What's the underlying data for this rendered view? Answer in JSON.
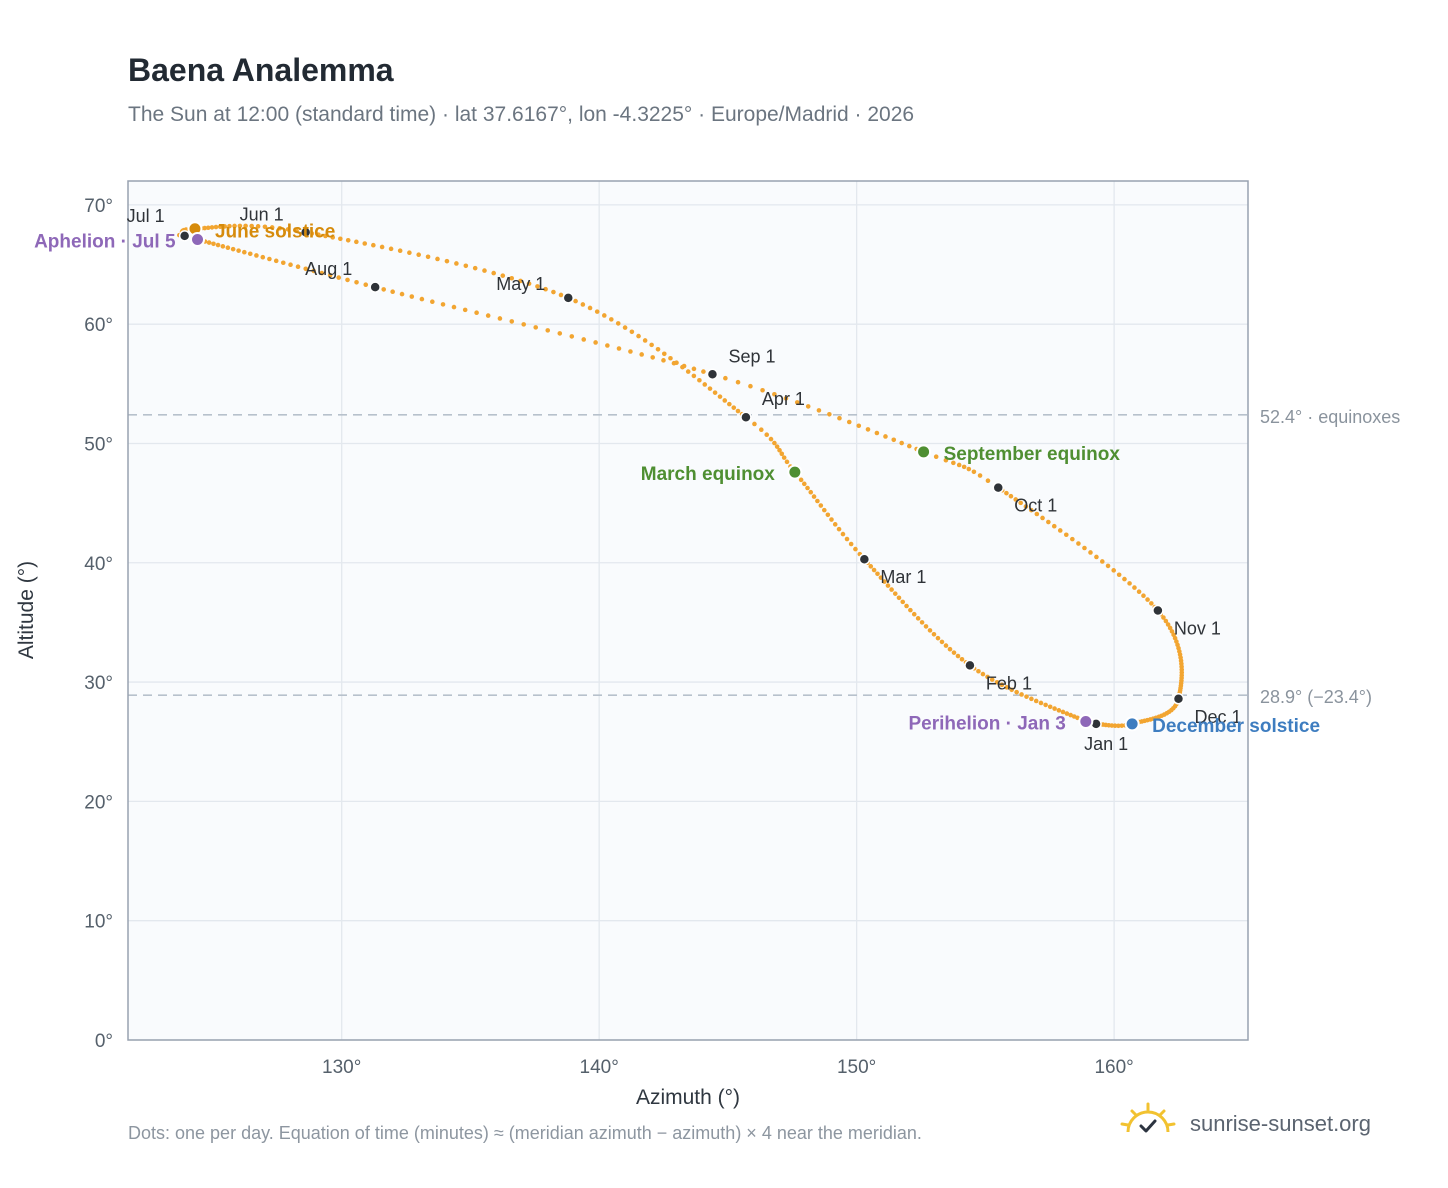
{
  "header": {
    "title": "Baena Analemma",
    "subtitle": "The Sun at 12:00 (standard time) · lat 37.6167°, lon -4.3225° · Europe/Madrid · 2026"
  },
  "footer": {
    "note": "Dots: one per day. Equation of time (minutes) ≈ (meridian azimuth − azimuth) × 4 near the meridian.",
    "brand": "sunrise-sunset.org"
  },
  "chart_data": {
    "type": "scatter",
    "title": "Baena Analemma",
    "xlabel": "Azimuth (°)",
    "ylabel": "Altitude (°)",
    "xlim": [
      121.7,
      165.2
    ],
    "ylim": [
      0,
      72
    ],
    "x_ticks": [
      130,
      140,
      150,
      160
    ],
    "x_tick_labels": [
      "130°",
      "140°",
      "150°",
      "160°"
    ],
    "y_ticks": [
      0,
      10,
      20,
      30,
      40,
      50,
      60,
      70
    ],
    "y_tick_labels": [
      "0°",
      "10°",
      "20°",
      "30°",
      "40°",
      "50°",
      "60°",
      "70°"
    ],
    "grid": true,
    "series_color": "#f2a531",
    "month_points": [
      {
        "label": "Jan 1",
        "x": 159.3,
        "y": 26.5
      },
      {
        "label": "Feb 1",
        "x": 154.4,
        "y": 31.4
      },
      {
        "label": "Mar 1",
        "x": 150.3,
        "y": 40.3
      },
      {
        "label": "Apr 1",
        "x": 145.7,
        "y": 52.2
      },
      {
        "label": "May 1",
        "x": 138.8,
        "y": 62.2
      },
      {
        "label": "Jun 1",
        "x": 128.6,
        "y": 67.7
      },
      {
        "label": "Jul 1",
        "x": 123.9,
        "y": 67.4
      },
      {
        "label": "Aug 1",
        "x": 131.3,
        "y": 63.1
      },
      {
        "label": "Sep 1",
        "x": 144.4,
        "y": 55.8
      },
      {
        "label": "Oct 1",
        "x": 155.5,
        "y": 46.3
      },
      {
        "label": "Nov 1",
        "x": 161.7,
        "y": 36.0
      },
      {
        "label": "Dec 1",
        "x": 162.5,
        "y": 28.6
      }
    ],
    "events": [
      {
        "label": "June solstice",
        "x": 124.3,
        "y": 68.0,
        "color": "#d68b0c"
      },
      {
        "label": "Aphelion · Jul 5",
        "x": 124.4,
        "y": 67.1,
        "color": "#8e68b8"
      },
      {
        "label": "March equinox",
        "x": 147.6,
        "y": 47.6,
        "color": "#4f8f32"
      },
      {
        "label": "September equinox",
        "x": 152.6,
        "y": 49.3,
        "color": "#4f8f32"
      },
      {
        "label": "Perihelion · Jan 3",
        "x": 158.9,
        "y": 26.7,
        "color": "#8e68b8"
      },
      {
        "label": "December solstice",
        "x": 160.7,
        "y": 26.5,
        "color": "#3e7dc0"
      }
    ],
    "reference_lines": [
      {
        "y": 52.4,
        "label": "52.4° · equinoxes"
      },
      {
        "y": 28.9,
        "label": "28.9° (−23.4°)"
      }
    ]
  }
}
